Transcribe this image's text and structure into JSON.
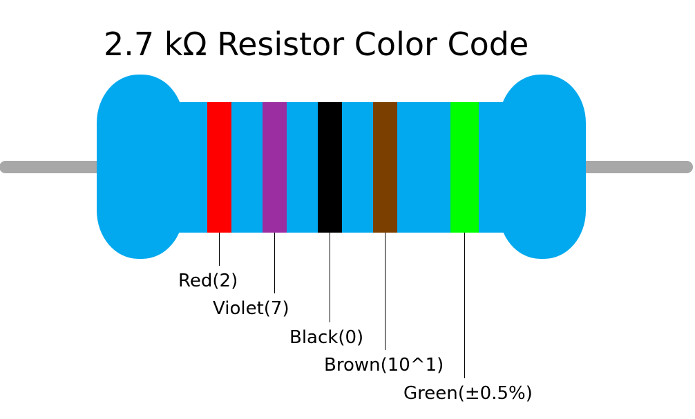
{
  "title": "2.7 kΩ Resistor Color Code",
  "bands": [
    {
      "label": "Red(2)",
      "color": "#ff0000"
    },
    {
      "label": "Violet(7)",
      "color": "#9b2ea0"
    },
    {
      "label": "Black(0)",
      "color": "#000000"
    },
    {
      "label": "Brown(10^1)",
      "color": "#7b3f00"
    },
    {
      "label": "Green(±0.5%)",
      "color": "#00ff00"
    }
  ]
}
